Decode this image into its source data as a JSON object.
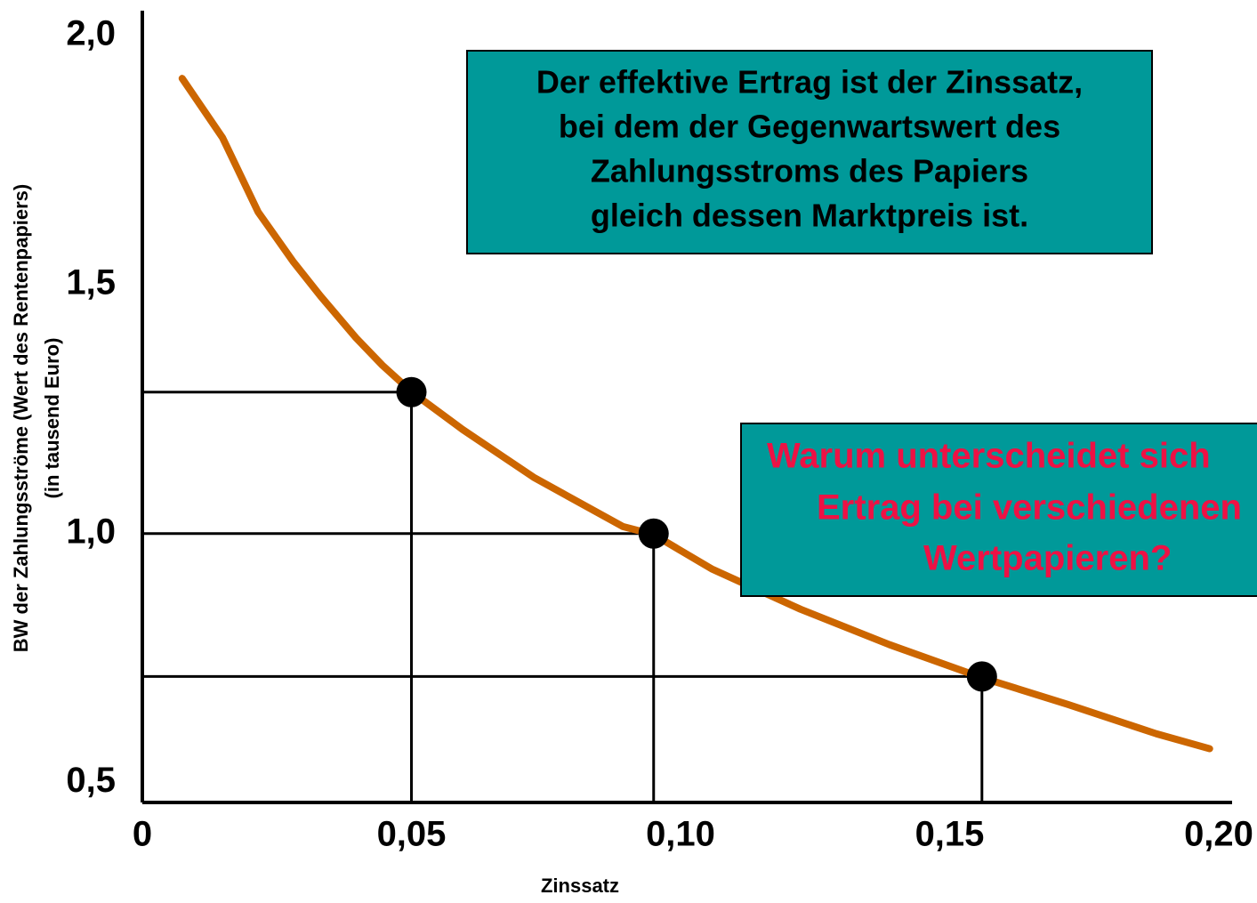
{
  "chart_data": {
    "type": "line",
    "xlabel": "Zinssatz",
    "ylabel": [
      "BW der Zahlungsströme (Wert des Rentenpapiers)",
      "(in tausend Euro)"
    ],
    "xlim": [
      0,
      0.2
    ],
    "ylim": [
      0.46,
      2.05
    ],
    "xticks": [
      0,
      {
        "value": 0.05,
        "label": "0,05"
      },
      {
        "value": 0.1,
        "label": "0,10"
      },
      {
        "value": 0.15,
        "label": "0,15"
      },
      {
        "value": 0.2,
        "label": "0,20"
      }
    ],
    "yticks": [
      {
        "value": 0.5,
        "label": "0,5"
      },
      {
        "value": 1.0,
        "label": "1,0"
      },
      {
        "value": 1.5,
        "label": "1,5"
      },
      {
        "value": 2.0,
        "label": "2,0"
      }
    ],
    "x": [
      0.0074,
      0.0149,
      0.0215,
      0.0281,
      0.0331,
      0.0397,
      0.0446,
      0.0501,
      0.0595,
      0.0727,
      0.0893,
      0.095,
      0.1058,
      0.1223,
      0.1388,
      0.1559,
      0.1719,
      0.1884,
      0.1983
    ],
    "series": [
      {
        "color": "#cc6600",
        "values": [
          1.914,
          1.795,
          1.646,
          1.545,
          1.477,
          1.393,
          1.338,
          1.284,
          1.209,
          1.113,
          1.014,
          0.998,
          0.929,
          0.848,
          0.777,
          0.711,
          0.657,
          0.598,
          0.568
        ]
      }
    ],
    "points": {
      "color": "#000000",
      "x": [
        0.05,
        0.095,
        0.156
      ],
      "y": [
        1.284,
        1.0,
        0.713
      ]
    },
    "annotations": [
      {
        "lines": [
          "Der effektive Ertrag ist der Zinssatz,",
          "bei dem der Gegenwartswert des",
          "Zahlungsstroms des Papiers",
          "gleich dessen Marktpreis ist."
        ],
        "color": "#000000",
        "background": "#009999"
      },
      {
        "lines": [
          "Warum unterscheidet sich",
          "Ertrag bei verschiedenen",
          "Wertpapieren?"
        ],
        "color": "#ee1144",
        "background": "#009999"
      }
    ]
  }
}
